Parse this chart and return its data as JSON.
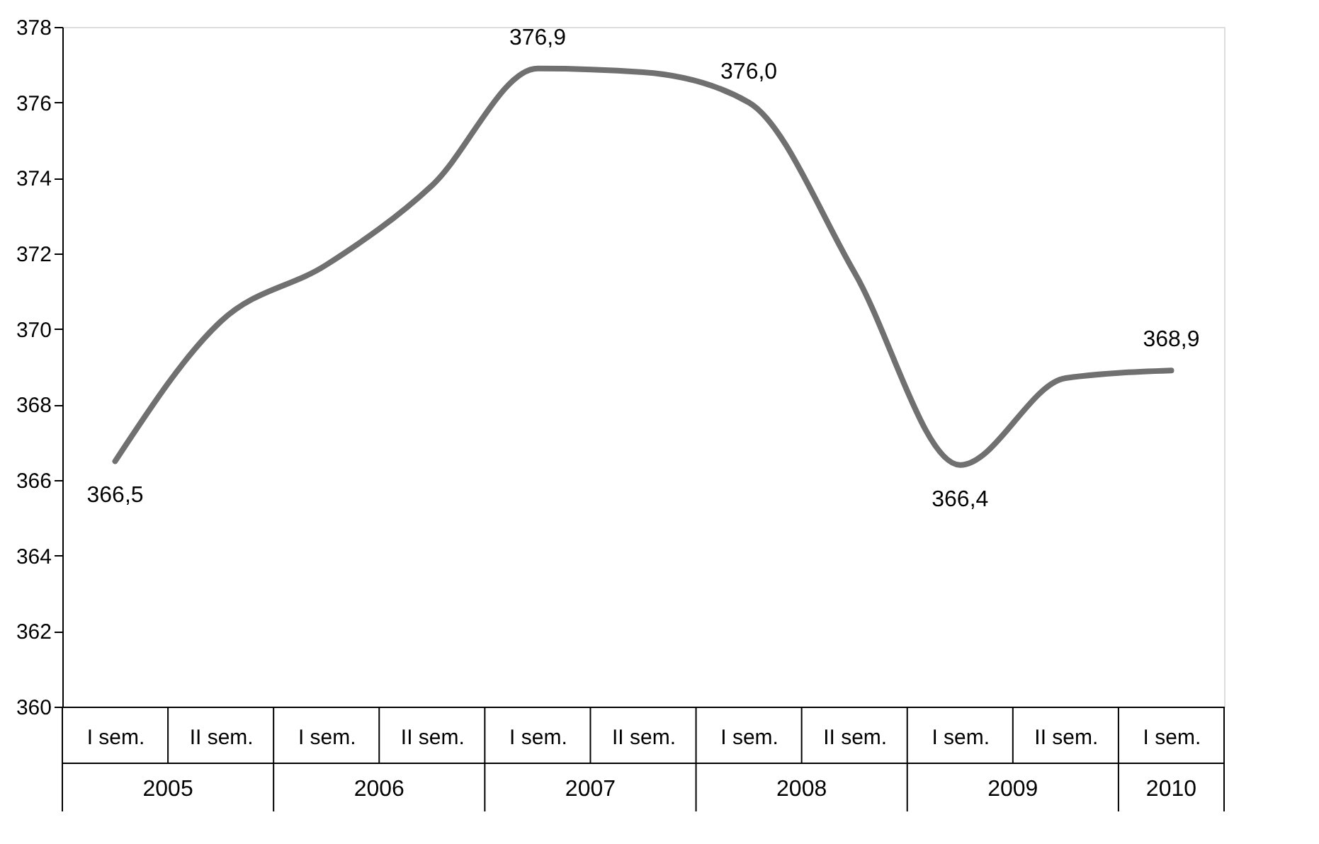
{
  "chart_data": {
    "type": "line",
    "categories": [
      "I sem.",
      "II sem.",
      "I sem.",
      "II sem.",
      "I sem.",
      "II sem.",
      "I sem.",
      "II sem.",
      "I sem.",
      "II sem.",
      "I sem."
    ],
    "series": [
      {
        "color": "#707070",
        "values": [
          366.5,
          370.2,
          371.7,
          373.8,
          376.9,
          376.8,
          376.0,
          371.5,
          366.4,
          368.7,
          368.9
        ],
        "value_labels": [
          "366,5",
          null,
          null,
          null,
          "376,9",
          null,
          "376,0",
          null,
          "366,4",
          null,
          "368,9"
        ]
      }
    ],
    "annotations": [
      "2005",
      "2006",
      "2007",
      "2008",
      "2009",
      "2010"
    ],
    "ylim": [
      360,
      378
    ],
    "yticks": [
      360,
      362,
      364,
      366,
      368,
      370,
      372,
      374,
      376,
      378
    ],
    "grid": false,
    "marker": "none",
    "line_style": "solid"
  }
}
